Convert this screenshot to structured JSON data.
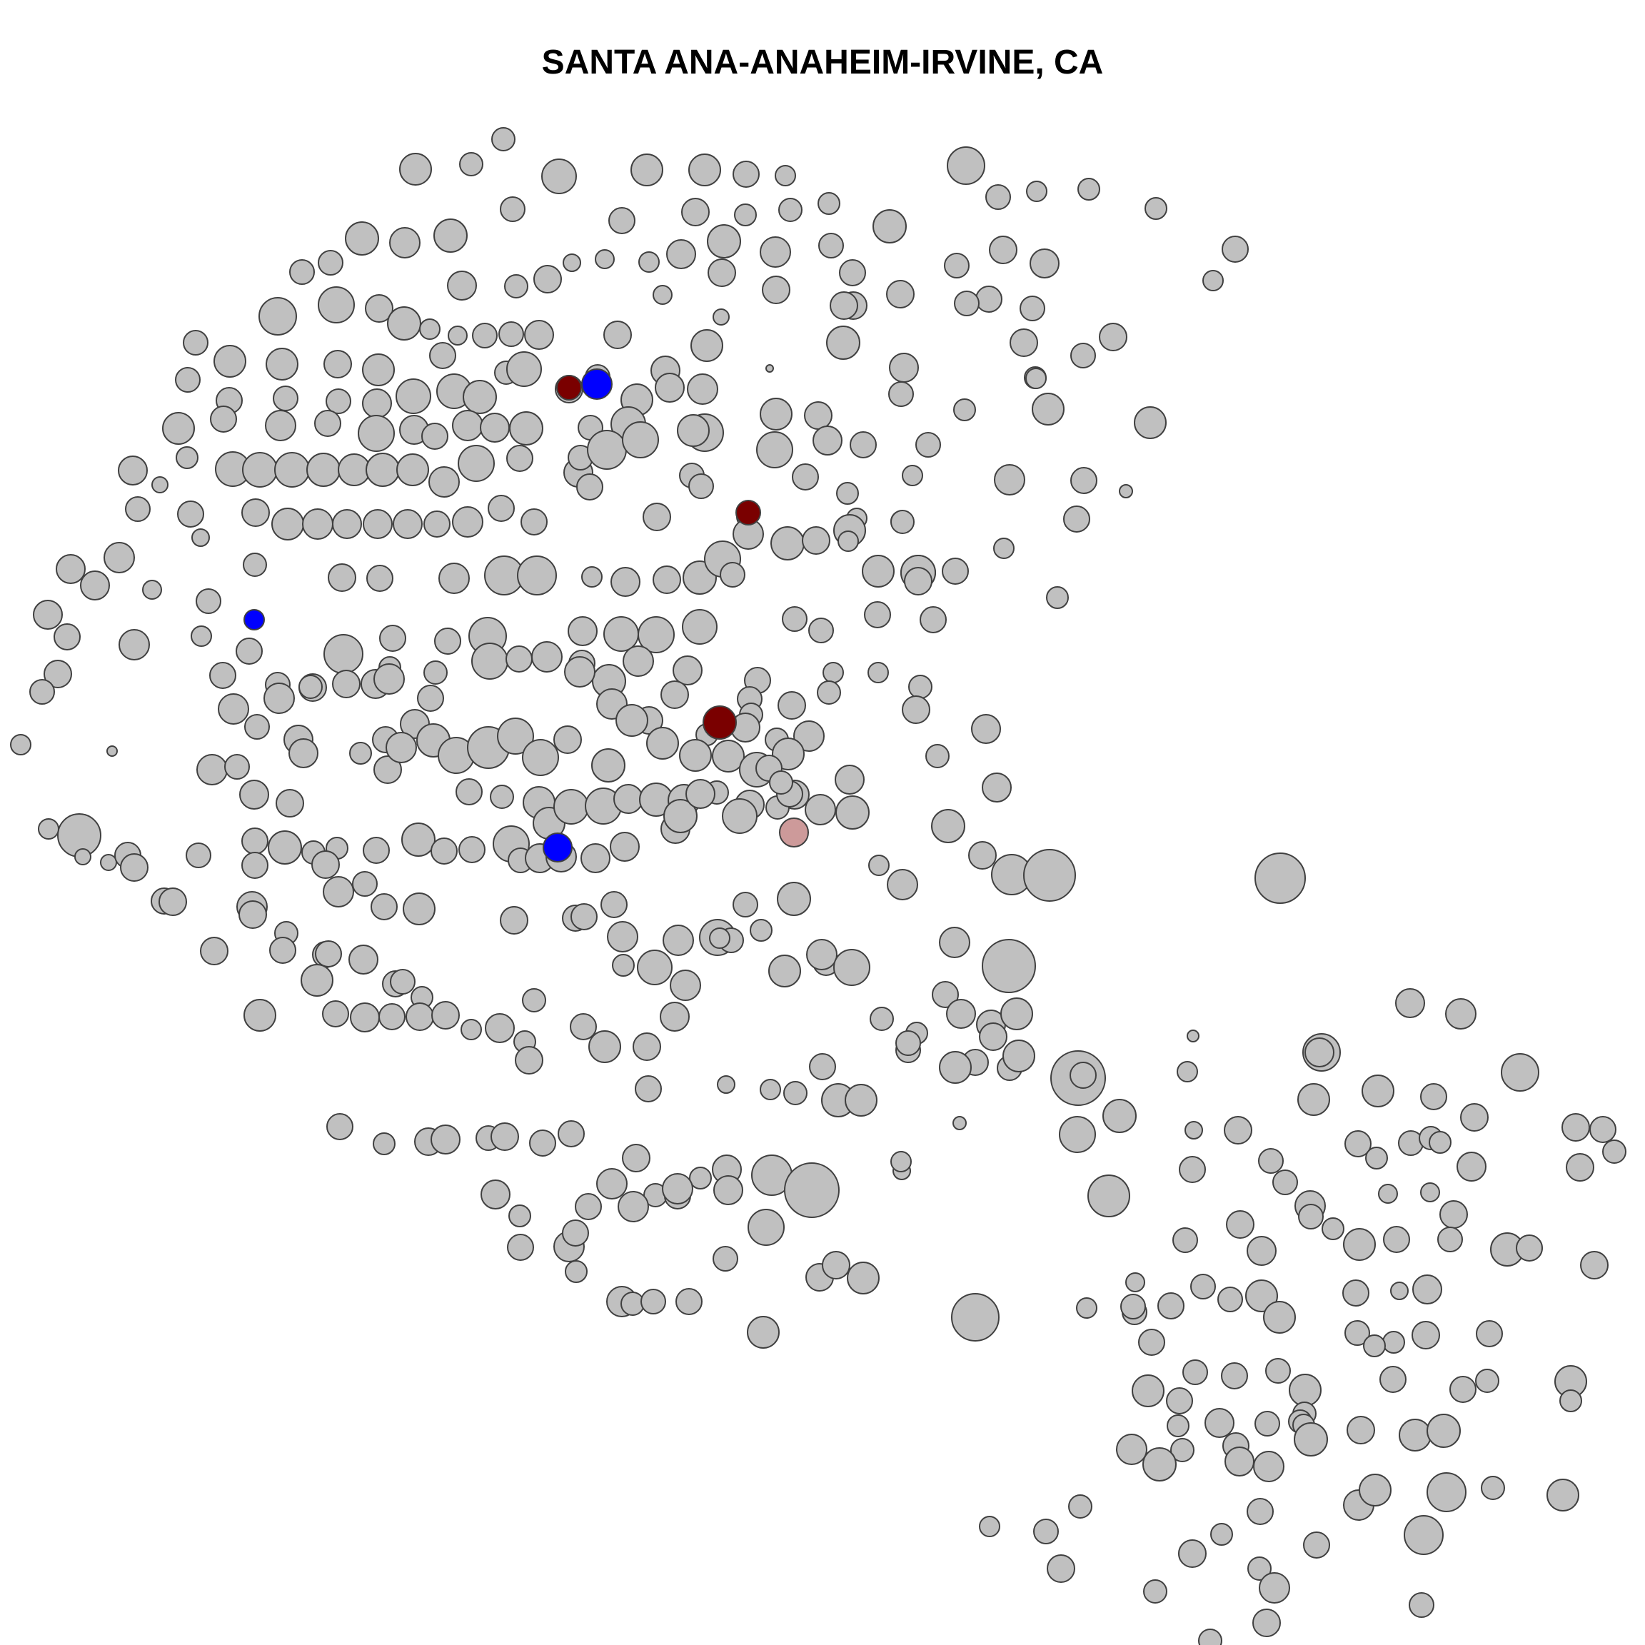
{
  "title": "SANTA ANA-ANAHEIM-IRVINE, CA",
  "colors": {
    "default_fill": "#c0c0c0",
    "stroke": "#404040",
    "dark_red": "#7a0000",
    "blue": "#0000ff",
    "light_red": "#cd9a9a"
  },
  "legend": "none",
  "symbol": "circle-marker"
}
